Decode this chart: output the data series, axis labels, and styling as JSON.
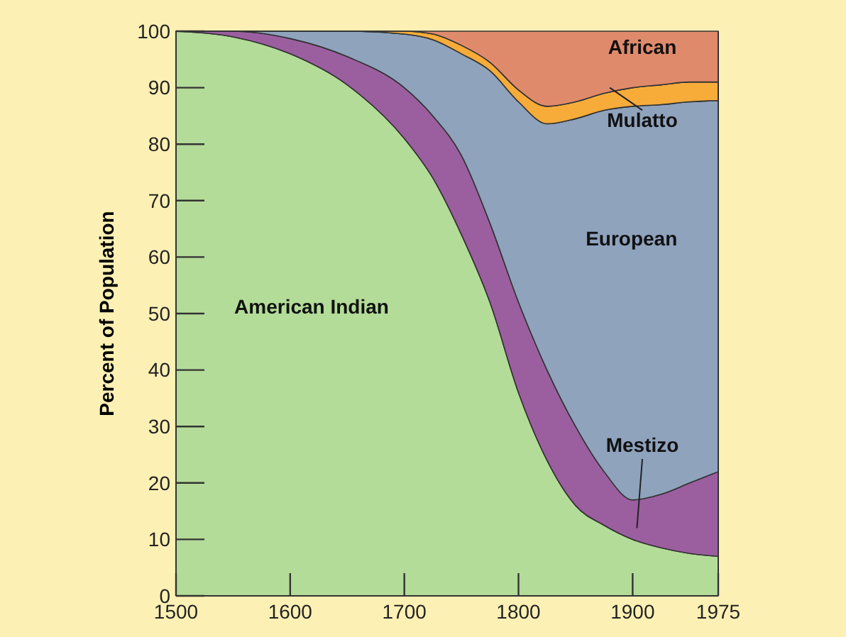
{
  "chart_data": {
    "type": "area",
    "stacked": true,
    "ylabel": "Percent of Population",
    "x": [
      1500,
      1550,
      1600,
      1650,
      1700,
      1725,
      1750,
      1775,
      1800,
      1825,
      1850,
      1875,
      1900,
      1925,
      1950,
      1975
    ],
    "xlim": [
      1500,
      1975
    ],
    "xticks": [
      1500,
      1600,
      1700,
      1800,
      1900,
      1975
    ],
    "ylim": [
      0,
      100
    ],
    "yticks": [
      0,
      10,
      20,
      30,
      40,
      50,
      60,
      70,
      80,
      90,
      100
    ],
    "grid": false,
    "series": [
      {
        "name": "American Indian",
        "color": "#b3dc98",
        "values": [
          100,
          99,
          96,
          90.5,
          81,
          74,
          64,
          52,
          36,
          24,
          16,
          12.5,
          10,
          8.5,
          7.5,
          7
        ]
      },
      {
        "name": "Mestizo",
        "color": "#9b5fa0",
        "values": [
          0,
          1,
          2.7,
          5,
          9,
          11,
          14,
          14,
          16,
          16,
          14,
          9.5,
          7,
          9.5,
          12.5,
          15
        ]
      },
      {
        "name": "European",
        "color": "#8fa3bd",
        "values": [
          0,
          0,
          1.3,
          4.5,
          9.5,
          13.5,
          18,
          27,
          35.5,
          43.6,
          54.5,
          64,
          69.7,
          69,
          67.5,
          65.7
        ]
      },
      {
        "name": "Mulatto",
        "color": "#f7ac3a",
        "values": [
          0,
          0,
          0,
          0,
          0.5,
          1,
          1.5,
          1.5,
          2.1,
          3.1,
          3,
          3,
          3.3,
          3.5,
          3.5,
          3.3
        ]
      },
      {
        "name": "African",
        "color": "#e08a6c",
        "values": [
          0,
          0,
          0,
          0,
          0,
          0.5,
          2.5,
          5.5,
          10.4,
          13.3,
          12.5,
          11,
          10,
          9.5,
          9,
          9
        ]
      }
    ]
  }
}
